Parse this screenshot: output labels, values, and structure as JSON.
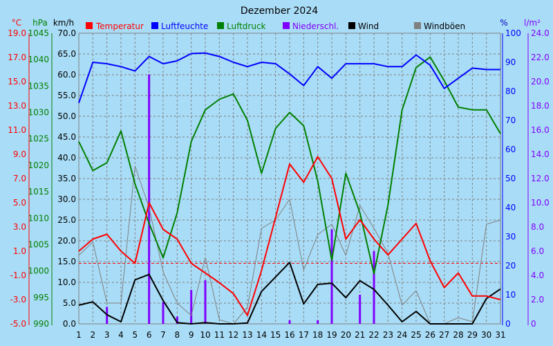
{
  "chart_data": {
    "type": "line",
    "title": "Dezember 2024",
    "x": [
      1,
      2,
      3,
      4,
      5,
      6,
      7,
      8,
      9,
      10,
      11,
      12,
      13,
      14,
      15,
      16,
      17,
      18,
      19,
      20,
      21,
      22,
      23,
      24,
      25,
      26,
      27,
      28,
      29,
      30,
      31
    ],
    "axes": {
      "temperature": {
        "unit": "°C",
        "min": -5.0,
        "max": 19.0,
        "ticks": [
          "-5.0",
          "-3.0",
          "-1.0",
          "1.0",
          "3.0",
          "5.0",
          "7.0",
          "9.0",
          "11.0",
          "13.0",
          "15.0",
          "17.0",
          "19.0"
        ]
      },
      "pressure": {
        "unit": "hPa",
        "min": 990,
        "max": 1045,
        "ticks": [
          "990",
          "995",
          "1000",
          "1005",
          "1010",
          "1015",
          "1020",
          "1025",
          "1030",
          "1035",
          "1040",
          "1045"
        ]
      },
      "wind": {
        "unit": "km/h",
        "min": 0,
        "max": 70,
        "ticks": [
          "0.0",
          "5.0",
          "10.0",
          "15.0",
          "20.0",
          "25.0",
          "30.0",
          "35.0",
          "40.0",
          "45.0",
          "50.0",
          "55.0",
          "60.0",
          "65.0",
          "70.0"
        ]
      },
      "humidity": {
        "unit": "%",
        "min": 0,
        "max": 100,
        "ticks": [
          "0",
          "10",
          "20",
          "30",
          "40",
          "50",
          "60",
          "70",
          "80",
          "90",
          "100"
        ]
      },
      "precipitation": {
        "unit": "l/m²",
        "min": 0,
        "max": 24,
        "ticks": [
          "0",
          "2.0",
          "4.0",
          "6.0",
          "8.0",
          "10.0",
          "12.0",
          "14.0",
          "16.0",
          "18.0",
          "20.0",
          "22.0",
          "24.0"
        ]
      }
    },
    "series": [
      {
        "name": "Temperatur",
        "color": "#ff0000",
        "axis": "temperature",
        "values": [
          1.0,
          2.0,
          2.4,
          1.0,
          0.0,
          5.0,
          2.8,
          2.0,
          0.0,
          -0.8,
          -1.6,
          -2.5,
          -4.3,
          -0.6,
          3.8,
          8.2,
          6.7,
          8.8,
          7.0,
          2.0,
          3.6,
          2.0,
          0.7,
          2.0,
          3.3,
          0.2,
          -2.0,
          -0.8,
          -2.7,
          -2.7,
          -3.0
        ]
      },
      {
        "name": "Luftfeuchte",
        "color": "#0000ff",
        "axis": "humidity",
        "values": [
          76,
          90,
          89.5,
          88.5,
          87,
          92,
          89.5,
          90.5,
          93,
          93.2,
          92,
          90,
          88.5,
          90,
          89.5,
          86,
          82,
          88.5,
          84.5,
          89.5,
          89.5,
          89.5,
          88.5,
          88.5,
          92.5,
          89,
          81,
          84.5,
          88,
          87.5,
          87.5
        ]
      },
      {
        "name": "Luftdruck",
        "color": "#008000",
        "axis": "pressure",
        "values": [
          1024.5,
          1019,
          1020.5,
          1026.5,
          1016.5,
          1009,
          1002.5,
          1011,
          1024.5,
          1030.5,
          1032.5,
          1033.5,
          1028.5,
          1018.5,
          1027,
          1030,
          1027.5,
          1017,
          1002,
          1018.5,
          1011,
          999.5,
          1012.5,
          1030.5,
          1038.5,
          1040.5,
          1036,
          1031,
          1030.5,
          1030.5,
          1026
        ]
      },
      {
        "name": "Niederschl.",
        "color": "#8000ff",
        "axis": "precipitation",
        "values": [
          0,
          0,
          1.4,
          0,
          0,
          20.6,
          1.8,
          0.6,
          2.8,
          3.6,
          0,
          0,
          0,
          0,
          0,
          0.3,
          0,
          0.3,
          7.8,
          0,
          2.4,
          6.0,
          0,
          0,
          0,
          0,
          0,
          0,
          0,
          0,
          0
        ]
      },
      {
        "name": "Wind",
        "color": "#000000",
        "axis": "wind",
        "values": [
          4.5,
          5.3,
          2.2,
          0.5,
          10.6,
          11.9,
          5.6,
          0.3,
          0,
          0.3,
          0,
          0,
          0.2,
          7.8,
          11.3,
          14.8,
          4.8,
          9.5,
          9.8,
          6.3,
          10.4,
          8.3,
          4.5,
          0.5,
          3.0,
          0,
          0,
          0,
          0,
          6.1,
          8.4
        ]
      },
      {
        "name": "Windböen",
        "color": "#808080",
        "axis": "wind",
        "values": [
          16.5,
          19.7,
          5.0,
          5.0,
          38.0,
          28.0,
          12.5,
          5.0,
          2.0,
          16.0,
          1.0,
          0,
          4.0,
          23.0,
          25.0,
          30.0,
          13.0,
          21.5,
          24.0,
          16.5,
          28.5,
          23.0,
          17.0,
          4.5,
          8.0,
          0,
          0,
          1.5,
          0.5,
          24.0,
          25.0
        ]
      }
    ],
    "reference_line": {
      "axis": "temperature",
      "value": 0.0,
      "color": "#ff0000",
      "style": "dashed"
    },
    "grid": true,
    "legend": "top"
  }
}
